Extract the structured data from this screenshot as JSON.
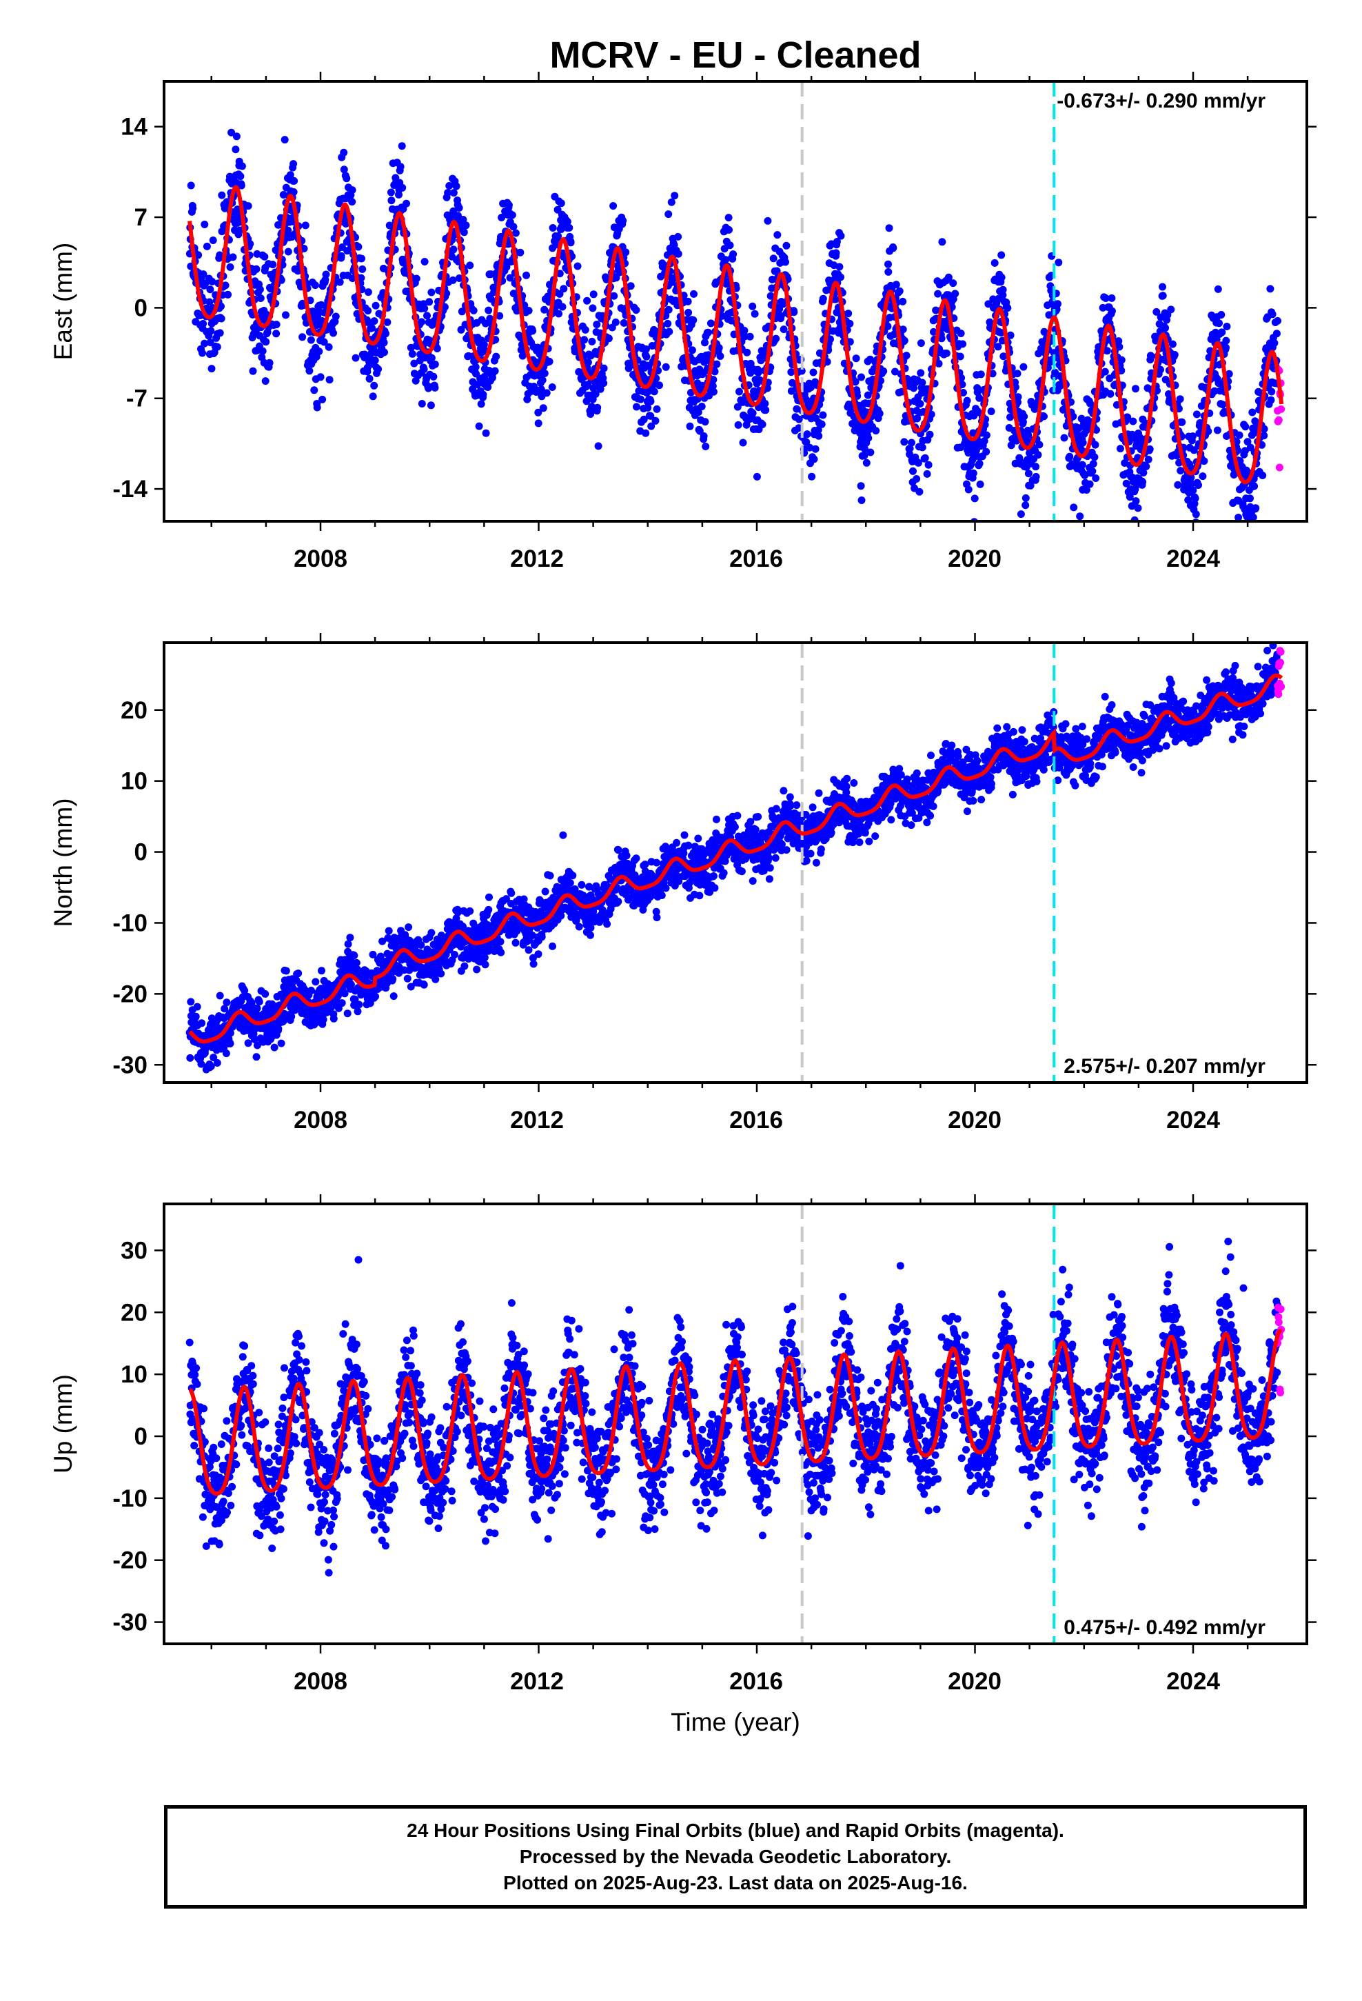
{
  "chart_data": {
    "title": "MCRV  - EU - Cleaned",
    "type": "scatter",
    "xlabel": "Time (year)",
    "xlim": [
      2005.2,
      2026.0
    ],
    "x_ticks": [
      "2008",
      "2012",
      "2016",
      "2020",
      "2024"
    ],
    "data_start": 2005.6,
    "data_end": 2025.62,
    "rapid_start": 2025.55,
    "vertical_markers": [
      {
        "x": 2016.83,
        "color": "#c8c8c8"
      },
      {
        "x": 2021.45,
        "color": "#00e5ee"
      }
    ],
    "colors": {
      "final": "#0000ff",
      "rapid": "#ff00ff",
      "model": "#ff0000"
    },
    "panels": [
      {
        "ylabel": "East (mm)",
        "ylim": [
          -16.5,
          17.5
        ],
        "y_ticks": [
          "14",
          "7",
          "0",
          "-7",
          "-14"
        ],
        "y_tick_values": [
          14,
          7,
          0,
          -7,
          -14
        ],
        "rate": "-0.673+/- 0.290 mm/yr",
        "rate_position": "top-right",
        "model": {
          "segments": [
            {
              "start": 2005.6,
              "end": 2021.45,
              "offset": 3.9
            },
            {
              "start": 2021.45,
              "end": 2025.62,
              "offset": 3.95
            }
          ],
          "slope": -0.673,
          "ref_year": 2005.6,
          "amplitude": 5.2,
          "phase_peak": 0.45,
          "semi_amplitude": 0.8
        },
        "noise": 2.2
      },
      {
        "ylabel": "North (mm)",
        "ylim": [
          -32.5,
          29.5
        ],
        "y_ticks": [
          "20",
          "10",
          "0",
          "-10",
          "-20",
          "-30"
        ],
        "y_tick_values": [
          20,
          10,
          0,
          -10,
          -20,
          -30
        ],
        "rate": "2.575+/- 0.207 mm/yr",
        "rate_position": "bottom-right",
        "model": {
          "segments": [
            {
              "start": 2005.6,
              "end": 2009.0,
              "offset": -26.5
            },
            {
              "start": 2009.0,
              "end": 2013.3,
              "offset": -25.5
            },
            {
              "start": 2013.3,
              "end": 2021.45,
              "offset": -25.5
            },
            {
              "start": 2021.45,
              "end": 2025.62,
              "offset": -28.0
            }
          ],
          "slope": 2.575,
          "ref_year": 2005.6,
          "amplitude": 1.3,
          "phase_peak": 0.5,
          "semi_amplitude": 0.3
        },
        "noise": 1.8
      },
      {
        "ylabel": "Up (mm)",
        "ylim": [
          -33.5,
          37.5
        ],
        "y_ticks": [
          "30",
          "20",
          "10",
          "0",
          "-10",
          "-20",
          "-30"
        ],
        "y_tick_values": [
          30,
          20,
          10,
          0,
          -10,
          -20,
          -30
        ],
        "rate": "0.475+/- 0.492 mm/yr",
        "rate_position": "bottom-right",
        "model": {
          "segments": [
            {
              "start": 2005.6,
              "end": 2025.62,
              "offset": -2.5
            }
          ],
          "slope": 0.475,
          "ref_year": 2005.6,
          "amplitude": 8.5,
          "phase_peak": 0.6,
          "semi_amplitude": 1.5
        },
        "noise": 4.5
      }
    ]
  },
  "footer": {
    "line1": "24 Hour Positions Using Final Orbits (blue) and Rapid Orbits (magenta).",
    "line2": "Processed by the Nevada Geodetic Laboratory.",
    "line3": "Plotted on 2025-Aug-23. Last data on 2025-Aug-16."
  }
}
